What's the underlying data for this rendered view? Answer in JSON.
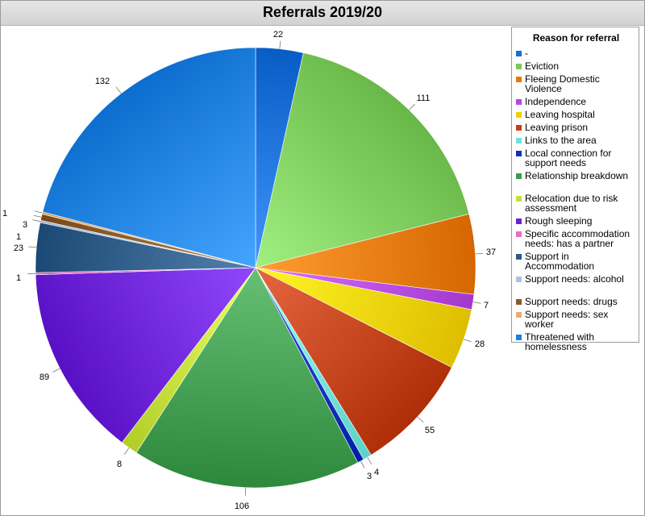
{
  "chart_data": {
    "type": "pie",
    "title": "Referrals 2019/20",
    "legend_title": "Reason for referral",
    "legend_position": "right",
    "slices": [
      {
        "label": "-",
        "value": 22,
        "color": "#1a6fd6"
      },
      {
        "label": "Eviction",
        "value": 111,
        "color": "#7ac95a"
      },
      {
        "label": "Fleeing Domestic Violence",
        "value": 37,
        "color": "#e8780c"
      },
      {
        "label": "Independence",
        "value": 7,
        "color": "#b54ae0"
      },
      {
        "label": "Leaving hospital",
        "value": 28,
        "color": "#f0d000"
      },
      {
        "label": "Leaving prison",
        "value": 55,
        "color": "#c0401a"
      },
      {
        "label": "Links to the area",
        "value": 4,
        "color": "#6fe3d8"
      },
      {
        "label": "Local connection for support needs",
        "value": 3,
        "color": "#1030b8"
      },
      {
        "label": "Relationship breakdown",
        "value": 106,
        "color": "#3f9a4e"
      },
      {
        "label": "Relocation due to risk assessment",
        "value": 8,
        "color": "#c5e03a"
      },
      {
        "label": "Rough sleeping",
        "value": 89,
        "color": "#6b22d6"
      },
      {
        "label": "Specific accommodation needs: has a partner",
        "value": 1,
        "color": "#e86fc8"
      },
      {
        "label": "Support in Accommodation",
        "value": 23,
        "color": "#2d5a86"
      },
      {
        "label": "Support needs: alcohol",
        "value": 1,
        "color": "#a8c4e0"
      },
      {
        "label": "Support needs: drugs",
        "value": 3,
        "color": "#8b5a2b"
      },
      {
        "label": "Support needs: sex worker",
        "value": 1,
        "color": "#e8b070"
      },
      {
        "label": "Threatened with homelessness",
        "value": 132,
        "color": "#1e7fe0"
      }
    ]
  }
}
